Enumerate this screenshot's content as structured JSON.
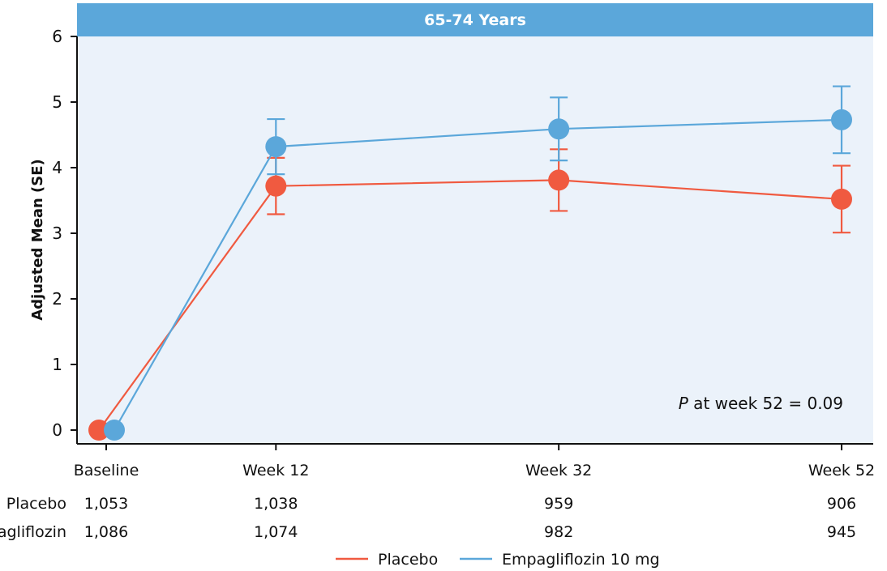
{
  "colors": {
    "placebo": "#f05a40",
    "empagliflozin": "#5ba7da",
    "panel_bg": "#ebf2fa",
    "title_bar": "#5ba7da"
  },
  "chart_data": {
    "type": "line",
    "title": "65-74 Years",
    "xlabel": "",
    "ylabel": "Adjusted Mean (SE)",
    "categories": [
      "Baseline",
      "Week 12",
      "Week 32",
      "Week 52"
    ],
    "x": [
      0,
      12,
      32,
      52
    ],
    "ylim": [
      0,
      6
    ],
    "yticks": [
      "0",
      "1",
      "2",
      "3",
      "4",
      "5",
      "6"
    ],
    "grid": false,
    "series": [
      {
        "name": "Placebo",
        "color": "#f05a40",
        "values": [
          0,
          3.72,
          3.81,
          3.52
        ],
        "se": [
          0,
          0.43,
          0.47,
          0.51
        ]
      },
      {
        "name": "Empagliflozin 10 mg",
        "color": "#5ba7da",
        "values": [
          0,
          4.32,
          4.59,
          4.73
        ],
        "se": [
          0,
          0.42,
          0.48,
          0.51
        ]
      }
    ],
    "annotation": {
      "italic": "P",
      "text": " at week 52 = 0.09"
    },
    "at_risk": {
      "rows": [
        {
          "label": "Placebo",
          "values": [
            "1,053",
            "1,038",
            "959",
            "906"
          ]
        },
        {
          "label": "Empagliflozin",
          "values": [
            "1,086",
            "1,074",
            "982",
            "945"
          ]
        }
      ]
    },
    "legend": {
      "placement": "bottom-center",
      "items": [
        "Placebo",
        "Empagliflozin 10 mg"
      ]
    }
  }
}
